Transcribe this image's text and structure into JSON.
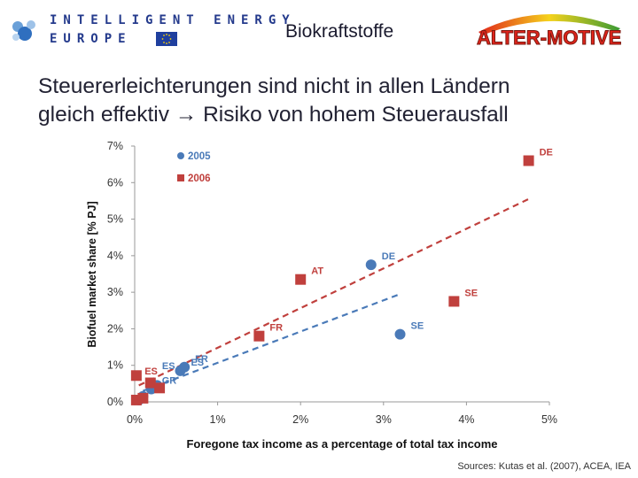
{
  "header": {
    "logo_line1": "INTELLIGENT ENERGY",
    "logo_line2": "EUROPE",
    "title": "Biokraftstoffe",
    "alter_logo": "ALTER-MOTIVE"
  },
  "subtitle": {
    "line1": "Steuererleichterungen sind nicht in allen Ländern",
    "line2": "gleich effektiv → Risiko von hohem Steuerausfall"
  },
  "sources": "Sources: Kutas et al. (2007), ACEA, IEA",
  "colors": {
    "s2005": "#4a7ab8",
    "s2006": "#c0403d",
    "text": "#222233"
  },
  "chart_data": {
    "type": "scatter",
    "title": "",
    "xlabel": "Foregone tax income as a percentage of total tax income",
    "ylabel": "Biofuel market share [% PJ]",
    "xlim": [
      0,
      5
    ],
    "ylim": [
      0,
      7
    ],
    "xticks": [
      "0%",
      "1%",
      "2%",
      "3%",
      "4%",
      "5%"
    ],
    "yticks": [
      "0%",
      "1%",
      "2%",
      "3%",
      "4%",
      "5%",
      "6%",
      "7%"
    ],
    "series": [
      {
        "name": "2005",
        "marker": "circle",
        "points": [
          {
            "x": 0.05,
            "y": 0.05,
            "label": ""
          },
          {
            "x": 0.1,
            "y": 0.15,
            "label": ""
          },
          {
            "x": 0.2,
            "y": 0.35,
            "label": "GR"
          },
          {
            "x": 0.27,
            "y": 0.45,
            "label": ""
          },
          {
            "x": 0.55,
            "y": 0.85,
            "label": "ES"
          },
          {
            "x": 0.6,
            "y": 0.95,
            "label": "FR"
          },
          {
            "x": 2.85,
            "y": 3.75,
            "label": "DE"
          },
          {
            "x": 3.2,
            "y": 1.85,
            "label": "SE"
          }
        ],
        "trend": {
          "x0": 0.1,
          "y0": 0.3,
          "x1": 3.2,
          "y1": 2.95
        }
      },
      {
        "name": "2006",
        "marker": "square",
        "points": [
          {
            "x": 0.02,
            "y": 0.05,
            "label": ""
          },
          {
            "x": 0.1,
            "y": 0.1,
            "label": ""
          },
          {
            "x": 0.02,
            "y": 0.72,
            "label": ""
          },
          {
            "x": 0.19,
            "y": 0.52,
            "label": ""
          },
          {
            "x": 0.3,
            "y": 0.38,
            "label": ""
          },
          {
            "x": 1.5,
            "y": 1.8,
            "label": "FR"
          },
          {
            "x": 2.0,
            "y": 3.35,
            "label": "AT"
          },
          {
            "x": 3.85,
            "y": 2.75,
            "label": "SE"
          },
          {
            "x": 4.75,
            "y": 6.6,
            "label": "DE"
          }
        ],
        "trend": {
          "x0": 0.05,
          "y0": 0.45,
          "x1": 4.75,
          "y1": 5.55
        }
      }
    ],
    "extra_labels": [
      {
        "text": "ES",
        "series": "2006",
        "x": 0.12,
        "y": 0.8
      },
      {
        "text": "ES",
        "series": "2005",
        "x": 0.33,
        "y": 0.95
      }
    ]
  }
}
